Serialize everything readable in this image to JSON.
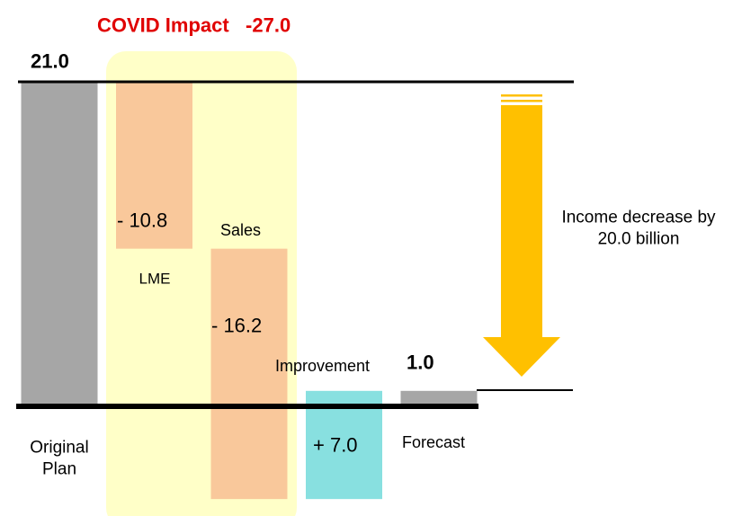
{
  "chart_data": {
    "type": "waterfall",
    "title": "COVID Impact",
    "title_value": "-27.0",
    "annotation": "Income decrease by 20.0 billion",
    "categories": [
      "Original Plan",
      "LME",
      "Sales",
      "Improvement",
      "Forecast"
    ],
    "values": [
      21.0,
      -10.8,
      -16.2,
      7.0,
      1.0
    ],
    "value_labels": [
      "21.0",
      "- 10.8",
      "- 16.2",
      "+ 7.0",
      "1.0"
    ],
    "measure": [
      "absolute",
      "relative",
      "relative",
      "relative",
      "total"
    ],
    "colors": [
      "#a6a6a6",
      "#f9c89b",
      "#f9c89b",
      "#88e0e0",
      "#a6a6a6"
    ]
  }
}
